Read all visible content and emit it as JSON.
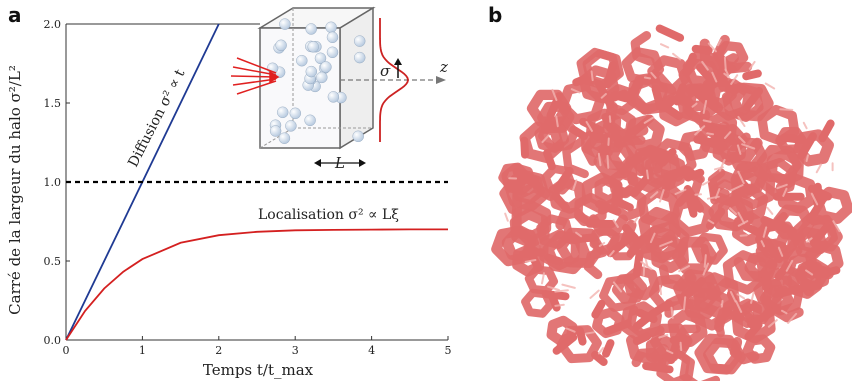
{
  "panel_a": {
    "letter": "a"
  },
  "panel_b": {
    "letter": "b",
    "structure_color": "#e06a6a",
    "structure_highlight": "#f3b3b0"
  },
  "inset": {
    "sigma_label": "σ",
    "z_label": "z",
    "L_label": "L",
    "colors": {
      "arrows": "#e02020",
      "gaussian": "#cc2222",
      "spheres": "#b9cbe0",
      "box": "#666666"
    }
  },
  "chart_data": {
    "type": "line",
    "xlabel": "Temps t/t_max",
    "ylabel": "Carré de la largeur du halo σ²/L²",
    "xlim": [
      0,
      5
    ],
    "ylim": [
      0,
      2.0
    ],
    "x_ticks": [
      "0",
      "1",
      "2",
      "3",
      "4",
      "5"
    ],
    "y_ticks": [
      "0.0",
      "0.5",
      "1.0",
      "1.5",
      "2.0"
    ],
    "grid": false,
    "series": [
      {
        "name": "Diffusion σ² ∝ t",
        "color": "#1f3a93",
        "x": [
          0,
          2.0
        ],
        "y": [
          0,
          2.0
        ]
      },
      {
        "name": "Localisation σ² ∝ Lξ",
        "color": "#d42020",
        "x": [
          0,
          0.25,
          0.5,
          0.75,
          1.0,
          1.5,
          2.0,
          2.5,
          3.0,
          3.5,
          4.0,
          4.5,
          5.0
        ],
        "y": [
          0,
          0.184,
          0.326,
          0.432,
          0.512,
          0.615,
          0.663,
          0.685,
          0.694,
          0.697,
          0.699,
          0.7,
          0.7
        ]
      },
      {
        "name": "",
        "color": "#000000",
        "style": "dashed",
        "x": [
          0,
          5
        ],
        "y": [
          1.0,
          1.0
        ]
      }
    ]
  }
}
